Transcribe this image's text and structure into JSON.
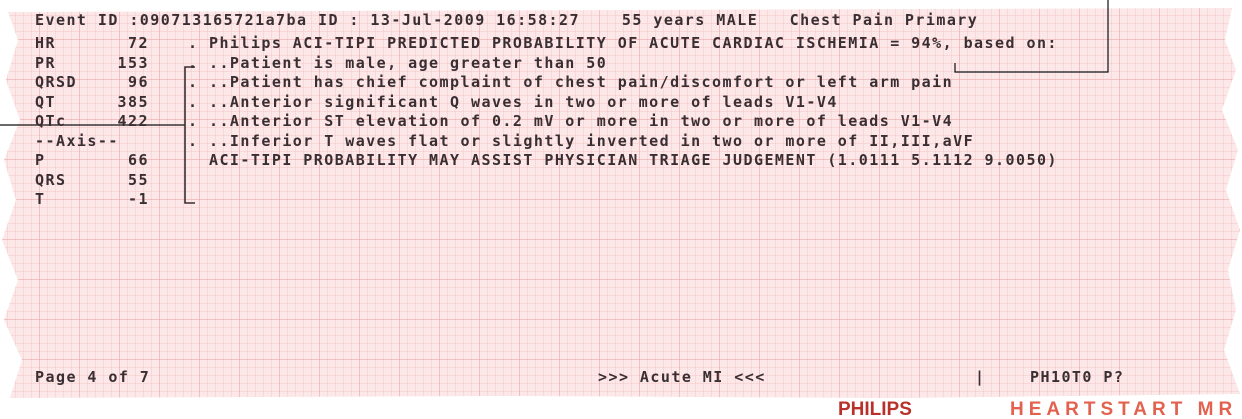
{
  "header": {
    "text": "Event ID :090713165721a7ba ID : 13-Jul-2009 16:58:27    55 years MALE   Chest Pain Primary"
  },
  "measurements": [
    {
      "label": "HR",
      "value": 72
    },
    {
      "label": "PR",
      "value": 153
    },
    {
      "label": "QRSD",
      "value": 96
    },
    {
      "label": "QT",
      "value": 385
    },
    {
      "label": "QTc",
      "value": 422
    },
    {
      "label": "--Axis--"
    },
    {
      "label": "P",
      "value": 66
    },
    {
      "label": "QRS",
      "value": 55
    },
    {
      "label": "T",
      "value": -1
    }
  ],
  "statements": [
    ". Philips ACI-TIPI PREDICTED PROBABILITY OF ACUTE CARDIAC ISCHEMIA = 94%, based on:",
    ". ..Patient is male, age greater than 50",
    ". ..Patient has chief complaint of chest pain/discomfort or left arm pain",
    ". ..Anterior significant Q waves in two or more of leads V1-V4",
    ". ..Anterior ST elevation of 0.2 mV or more in two or more of leads V1-V4",
    ". ..Inferior T waves flat or slightly inverted in two or more of II,III,aVF",
    "  ACI-TIPI PROBABILITY MAY ASSIST PHYSICIAN TRIAGE JUDGEMENT (1.0111 5.1112 9.0050)"
  ],
  "footer": {
    "page": "Page 4 of 7",
    "interpretation": ">>> Acute MI <<<",
    "separator": "|",
    "code": "PH10T0 P?"
  },
  "brand": {
    "maker": "PHILIPS",
    "product": "HEARTSTART MR"
  }
}
